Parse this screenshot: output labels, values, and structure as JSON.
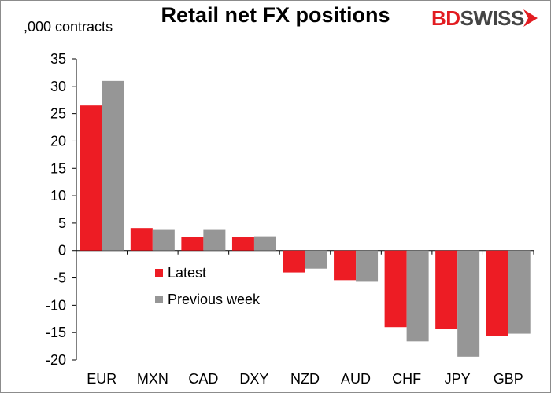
{
  "header": {
    "title": "Retail net FX positions",
    "unit_label": ",000 contracts",
    "logo_bd": "BD",
    "logo_swiss": "SWISS"
  },
  "colors": {
    "latest": "#ed1c24",
    "previous": "#969696",
    "brand_red": "#e21c21",
    "brand_grey": "#444444"
  },
  "chart_data": {
    "type": "bar",
    "categories": [
      "EUR",
      "MXN",
      "CAD",
      "DXY",
      "NZD",
      "AUD",
      "CHF",
      "JPY",
      "GBP"
    ],
    "series": [
      {
        "name": "Latest",
        "values": [
          26.5,
          4.1,
          2.5,
          2.4,
          -4.0,
          -5.4,
          -14.0,
          -14.4,
          -15.6
        ]
      },
      {
        "name": "Previous week",
        "values": [
          31.0,
          3.9,
          3.9,
          2.6,
          -3.3,
          -5.7,
          -16.6,
          -19.4,
          -15.2
        ]
      }
    ],
    "ylim": [
      -20,
      35
    ],
    "yticks": [
      -20,
      -15,
      -10,
      -5,
      0,
      5,
      10,
      15,
      20,
      25,
      30,
      35
    ],
    "xlabel": "",
    "ylabel": "",
    "legend_position": "center-left",
    "grid": false
  }
}
